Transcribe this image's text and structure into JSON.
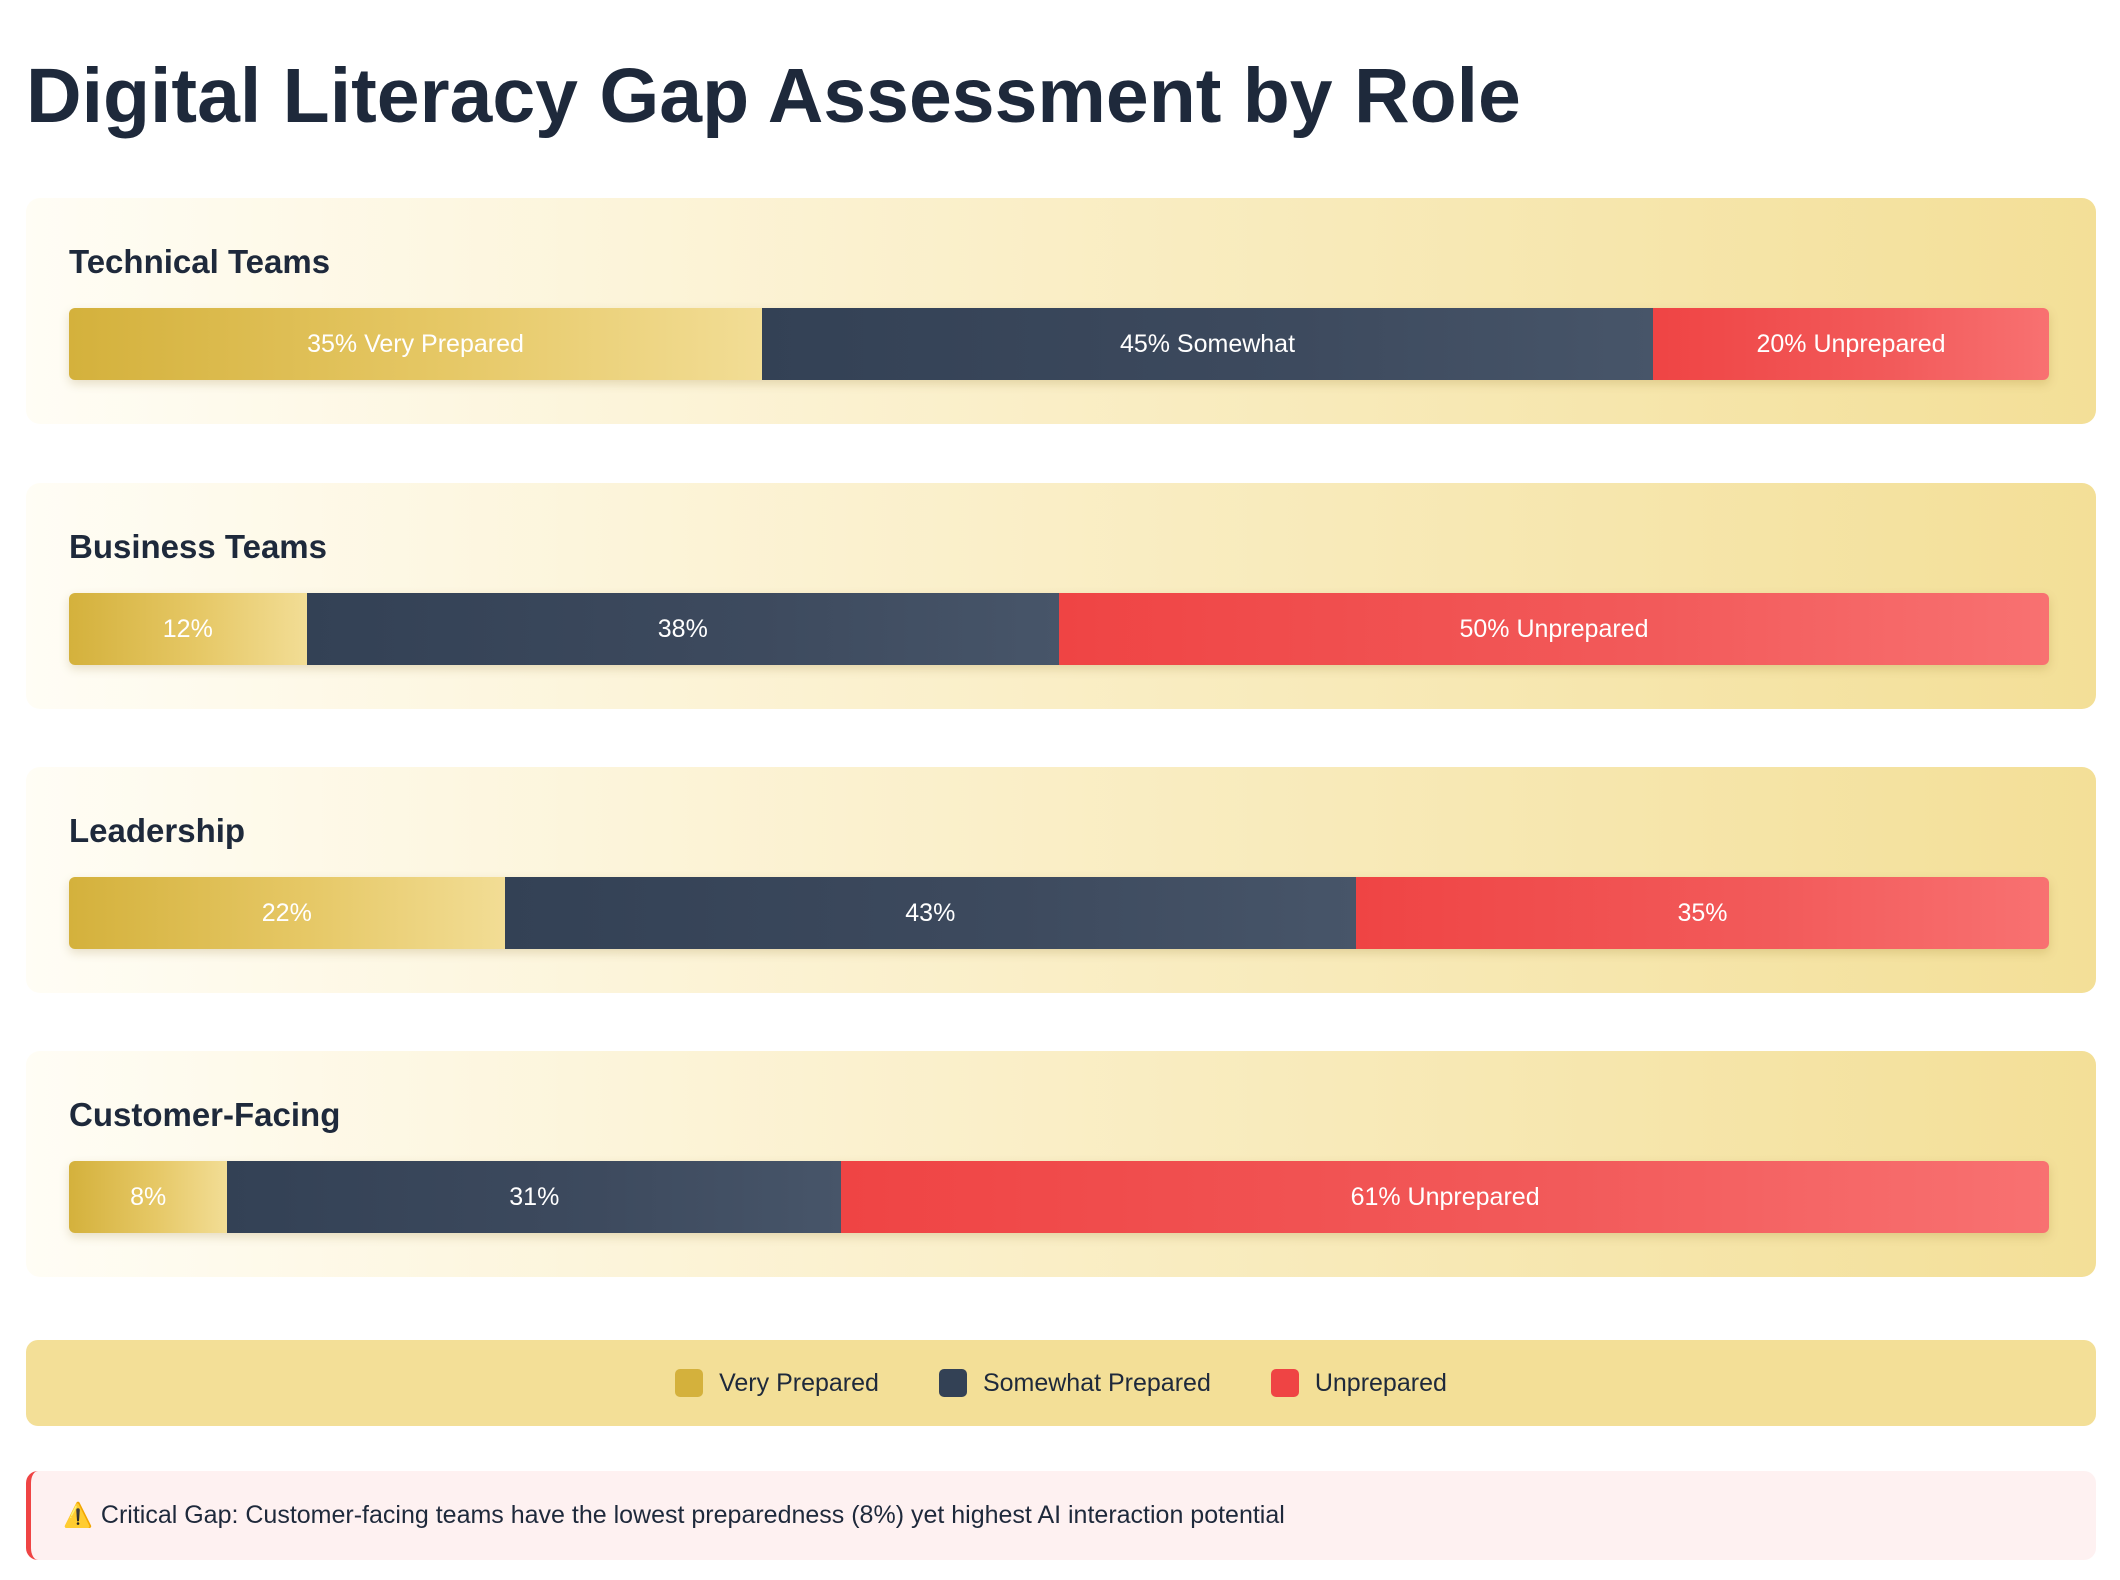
{
  "page": {
    "title": "Digital Literacy Gap Assessment by Role"
  },
  "colors": {
    "very_prepared": "#d4b13c",
    "somewhat_prepared": "#334155",
    "unprepared": "#ef4444"
  },
  "chart_data": {
    "type": "bar",
    "orientation": "horizontal",
    "stacked": true,
    "normalized": true,
    "title": "Digital Literacy Gap Assessment by Role",
    "categories": [
      "Technical Teams",
      "Business Teams",
      "Leadership",
      "Customer-Facing"
    ],
    "series": [
      {
        "name": "Very Prepared",
        "values": [
          35,
          12,
          22,
          8
        ]
      },
      {
        "name": "Somewhat Prepared",
        "values": [
          45,
          38,
          43,
          31
        ]
      },
      {
        "name": "Unprepared",
        "values": [
          20,
          50,
          35,
          61
        ]
      }
    ],
    "segment_labels": [
      [
        "35% Very Prepared",
        "45% Somewhat",
        "20% Unprepared"
      ],
      [
        "12%",
        "38%",
        "50% Unprepared"
      ],
      [
        "22%",
        "43%",
        "35%"
      ],
      [
        "8%",
        "31%",
        "61% Unprepared"
      ]
    ],
    "xlim": [
      0,
      100
    ],
    "legend_position": "bottom"
  },
  "legend": {
    "items": [
      {
        "label": "Very Prepared",
        "icon": "square-swatch"
      },
      {
        "label": "Somewhat Prepared",
        "icon": "square-swatch"
      },
      {
        "label": "Unprepared",
        "icon": "square-swatch"
      }
    ]
  },
  "alert": {
    "icon": "warning-icon",
    "text": "Critical Gap: Customer-facing teams have the lowest preparedness (8%) yet highest AI interaction potential"
  }
}
